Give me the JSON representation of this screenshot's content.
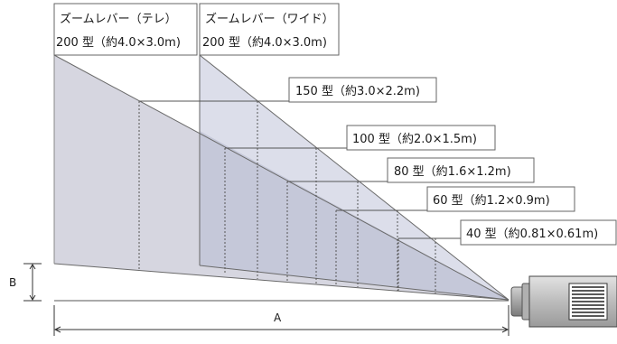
{
  "header_tele": {
    "line1": "ズームレバー（テレ）",
    "line2": "200 型（約4.0×3.0m)"
  },
  "header_wide": {
    "line1": "ズームレバー（ワイド）",
    "line2": "200 型（約4.0×3.0m)"
  },
  "size_labels": {
    "s150": "150 型（約3.0×2.2m)",
    "s100": "100 型（約2.0×1.5m)",
    "s80": "80 型（約1.6×1.2m)",
    "s60": "60 型（約1.2×0.9m)",
    "s40": "40 型（約0.81×0.61m)"
  },
  "dimension_labels": {
    "distance": "A",
    "offset": "B"
  },
  "colors": {
    "tele_fill": "#d5d5df",
    "wide_fill": "#d8dae8",
    "overlap_fill": "#c6c8d8",
    "line": "#555555",
    "projector_body": "#c8c8c8"
  }
}
